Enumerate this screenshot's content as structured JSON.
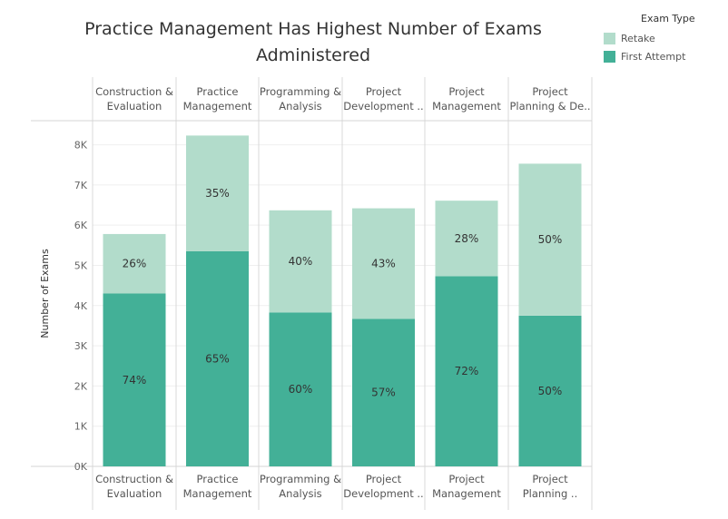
{
  "chart_data": {
    "type": "bar",
    "stacked": true,
    "title_lines": [
      "Practice Management Has Highest Number of Exams",
      "Administered"
    ],
    "ylabel": "Number of Exams",
    "ylim": [
      0,
      8600
    ],
    "yticks": [
      0,
      1000,
      2000,
      3000,
      4000,
      5000,
      6000,
      7000,
      8000
    ],
    "ytick_labels": [
      "0K",
      "1K",
      "2K",
      "3K",
      "4K",
      "5K",
      "6K",
      "7K",
      "8K"
    ],
    "grid": true,
    "legend_title": "Exam Type",
    "legend_position": "top-right",
    "header_labels": [
      [
        "Construction &",
        "Evaluation"
      ],
      [
        "Practice",
        "Management"
      ],
      [
        "Programming &",
        "Analysis"
      ],
      [
        "Project",
        "Development .."
      ],
      [
        "Project",
        "Management"
      ],
      [
        "Project",
        "Planning & De.."
      ]
    ],
    "footer_labels": [
      [
        "Construction &",
        "Evaluation"
      ],
      [
        "Practice",
        "Management"
      ],
      [
        "Programming &",
        "Analysis"
      ],
      [
        "Project",
        "Development .."
      ],
      [
        "Project",
        "Management"
      ],
      [
        "Project",
        "Planning .."
      ]
    ],
    "series": [
      {
        "name": "First Attempt",
        "color": "#43b097",
        "values": [
          4300,
          5350,
          3830,
          3670,
          4730,
          3750
        ],
        "labels": [
          "74%",
          "65%",
          "60%",
          "57%",
          "72%",
          "50%"
        ]
      },
      {
        "name": "Retake",
        "color": "#b2dccb",
        "values": [
          1480,
          2880,
          2540,
          2750,
          1880,
          3780
        ],
        "labels": [
          "26%",
          "35%",
          "40%",
          "43%",
          "28%",
          "50%"
        ]
      }
    ]
  }
}
